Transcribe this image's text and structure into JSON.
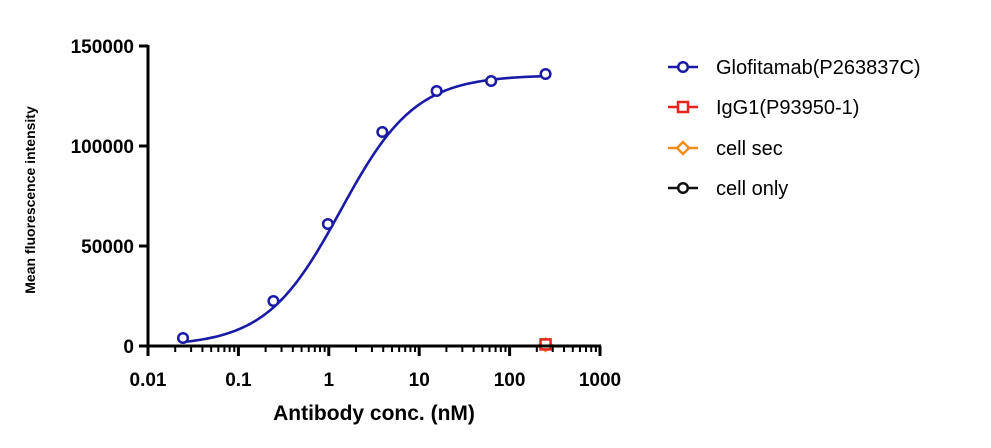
{
  "chart_data": {
    "type": "scatter",
    "title": "",
    "xlabel": "Antibody conc. (nM)",
    "ylabel": "Mean fluorescence intensity",
    "x_scale": "log",
    "xlim": [
      0.01,
      1000
    ],
    "ylim": [
      0,
      150000
    ],
    "x_ticks": [
      "0.01",
      "0.1",
      "1",
      "10",
      "100",
      "1000"
    ],
    "y_ticks": [
      "0",
      "50000",
      "100000",
      "150000"
    ],
    "legend_position": "right",
    "grid": false,
    "series": [
      {
        "name": "Glofitamab(P263837C)",
        "color": "#1a1aa6",
        "marker": "circle",
        "fitted_curve": true,
        "x": [
          0.0244,
          0.244,
          0.977,
          3.91,
          15.6,
          62.5,
          250
        ],
        "y": [
          4000,
          22500,
          61000,
          107000,
          127500,
          132500,
          136000
        ]
      },
      {
        "name": "IgG1(P93950-1)",
        "color": "#e8231c",
        "marker": "square",
        "fitted_curve": false,
        "x": [
          250
        ],
        "y": [
          800
        ]
      },
      {
        "name": "cell sec",
        "color": "#f28c1c",
        "marker": "diamond",
        "fitted_curve": false,
        "x": [
          250
        ],
        "y": [
          600
        ]
      },
      {
        "name": "cell only",
        "color": "#111111",
        "marker": "circle",
        "fitted_curve": false,
        "x": [
          250
        ],
        "y": [
          500
        ]
      }
    ]
  }
}
